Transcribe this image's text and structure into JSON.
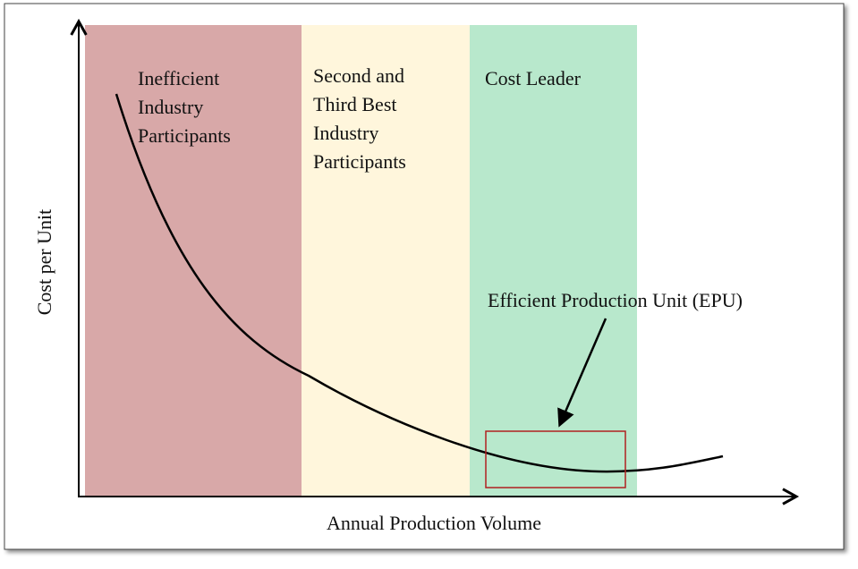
{
  "regions": [
    {
      "lines": [
        "Inefficient",
        "Industry",
        "Participants"
      ]
    },
    {
      "lines": [
        "Second and",
        "Third Best",
        "Industry",
        "Participants"
      ]
    },
    {
      "lines": [
        "Cost Leader"
      ]
    }
  ],
  "annotation": "Efficient Production Unit (EPU)",
  "y_axis_label": "Cost per Unit",
  "x_axis_label": "Annual Production Volume"
}
